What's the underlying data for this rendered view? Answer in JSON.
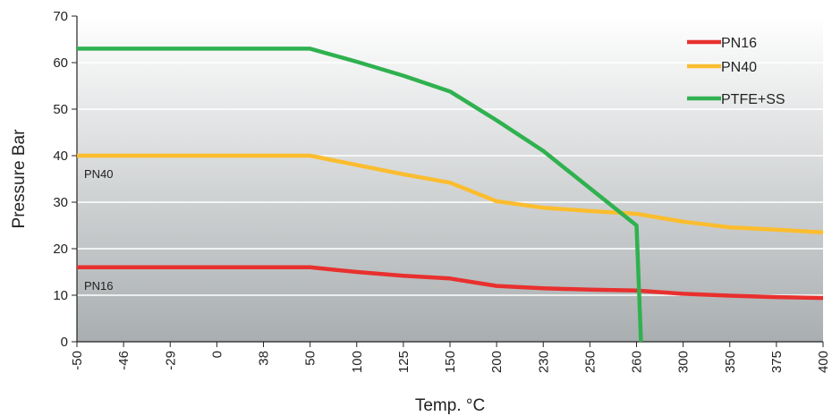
{
  "chart_data": {
    "type": "line",
    "categories": [
      "-50",
      "-46",
      "-29",
      "0",
      "38",
      "50",
      "100",
      "125",
      "150",
      "200",
      "230",
      "250",
      "260",
      "300",
      "350",
      "375",
      "400"
    ],
    "xlabel": "Temp. °C",
    "ylabel": "Pressure Bar",
    "ylim": [
      0,
      70
    ],
    "yticks": [
      0,
      10,
      20,
      30,
      40,
      50,
      60,
      70
    ],
    "grid": true,
    "legend_position": "top-right",
    "series": [
      {
        "name": "PN16",
        "color": "#e8302e",
        "points": [
          {
            "x": "-50",
            "y": 16
          },
          {
            "x": "-46",
            "y": 16
          },
          {
            "x": "-29",
            "y": 16
          },
          {
            "x": "0",
            "y": 16
          },
          {
            "x": "38",
            "y": 16
          },
          {
            "x": "50",
            "y": 16
          },
          {
            "x": "100",
            "y": 15
          },
          {
            "x": "125",
            "y": 14.2
          },
          {
            "x": "150",
            "y": 13.6
          },
          {
            "x": "200",
            "y": 12
          },
          {
            "x": "230",
            "y": 11.5
          },
          {
            "x": "250",
            "y": 11.2
          },
          {
            "x": "260",
            "y": 11
          },
          {
            "x": "300",
            "y": 10.3
          },
          {
            "x": "350",
            "y": 9.9
          },
          {
            "x": "375",
            "y": 9.6
          },
          {
            "x": "400",
            "y": 9.4
          }
        ]
      },
      {
        "name": "PN40",
        "color": "#fbbd2e",
        "points": [
          {
            "x": "-50",
            "y": 40
          },
          {
            "x": "-46",
            "y": 40
          },
          {
            "x": "-29",
            "y": 40
          },
          {
            "x": "0",
            "y": 40
          },
          {
            "x": "38",
            "y": 40
          },
          {
            "x": "50",
            "y": 40
          },
          {
            "x": "100",
            "y": 38
          },
          {
            "x": "125",
            "y": 36
          },
          {
            "x": "150",
            "y": 34.2
          },
          {
            "x": "200",
            "y": 30.2
          },
          {
            "x": "230",
            "y": 28.8
          },
          {
            "x": "250",
            "y": 28.1
          },
          {
            "x": "260",
            "y": 27.5
          },
          {
            "x": "300",
            "y": 25.8
          },
          {
            "x": "350",
            "y": 24.6
          },
          {
            "x": "375",
            "y": 24.1
          },
          {
            "x": "400",
            "y": 23.5
          }
        ]
      },
      {
        "name": "PTFE+SS",
        "color": "#2fb14f",
        "points": [
          {
            "x": "-50",
            "y": 63
          },
          {
            "x": "-46",
            "y": 63
          },
          {
            "x": "-29",
            "y": 63
          },
          {
            "x": "0",
            "y": 63
          },
          {
            "x": "38",
            "y": 63
          },
          {
            "x": "50",
            "y": 63
          },
          {
            "x": "100",
            "y": 60.2
          },
          {
            "x": "125",
            "y": 57.2
          },
          {
            "x": "150",
            "y": 53.8
          },
          {
            "x": "200",
            "y": 47.6
          },
          {
            "x": "230",
            "y": 41
          },
          {
            "x": "250",
            "y": 33
          },
          {
            "x": "260",
            "y": 25
          },
          {
            "x": "260",
            "y": 0
          }
        ]
      }
    ],
    "annotations": [
      {
        "text": "PN40",
        "x": "-50",
        "y": 40
      },
      {
        "text": "PN16",
        "x": "-50",
        "y": 16
      }
    ]
  }
}
